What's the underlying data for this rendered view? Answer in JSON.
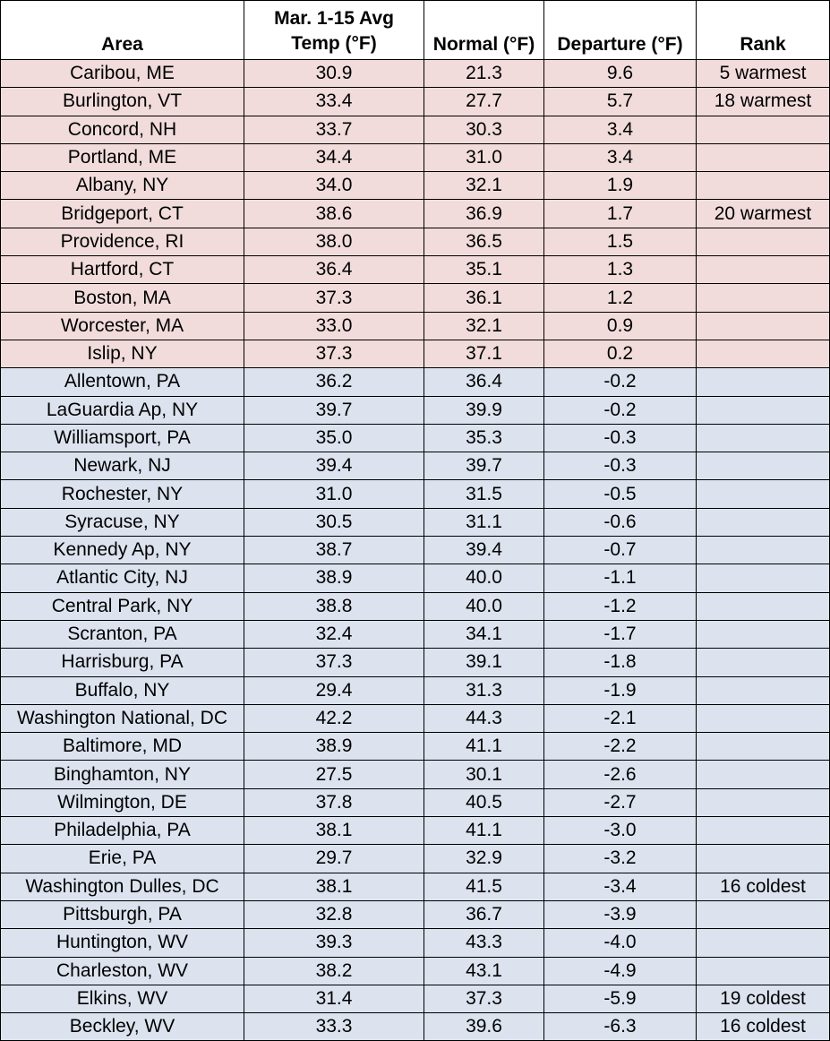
{
  "columns": {
    "area": "Area",
    "avg_line1": "Mar. 1-15 Avg",
    "avg_line2": "Temp (°F)",
    "normal": "Normal (°F)",
    "departure": "Departure (°F)",
    "rank": "Rank"
  },
  "colors": {
    "warm_row": "#f1dcdb",
    "cold_row": "#dce3ef"
  },
  "rows": [
    {
      "area": "Caribou, ME",
      "avg": "30.9",
      "normal": "21.3",
      "departure": "9.6",
      "rank": "5 warmest",
      "group": "warm"
    },
    {
      "area": "Burlington, VT",
      "avg": "33.4",
      "normal": "27.7",
      "departure": "5.7",
      "rank": "18 warmest",
      "group": "warm"
    },
    {
      "area": "Concord, NH",
      "avg": "33.7",
      "normal": "30.3",
      "departure": "3.4",
      "rank": "",
      "group": "warm"
    },
    {
      "area": "Portland, ME",
      "avg": "34.4",
      "normal": "31.0",
      "departure": "3.4",
      "rank": "",
      "group": "warm"
    },
    {
      "area": "Albany, NY",
      "avg": "34.0",
      "normal": "32.1",
      "departure": "1.9",
      "rank": "",
      "group": "warm"
    },
    {
      "area": "Bridgeport, CT",
      "avg": "38.6",
      "normal": "36.9",
      "departure": "1.7",
      "rank": "20 warmest",
      "group": "warm"
    },
    {
      "area": "Providence, RI",
      "avg": "38.0",
      "normal": "36.5",
      "departure": "1.5",
      "rank": "",
      "group": "warm"
    },
    {
      "area": "Hartford, CT",
      "avg": "36.4",
      "normal": "35.1",
      "departure": "1.3",
      "rank": "",
      "group": "warm"
    },
    {
      "area": "Boston, MA",
      "avg": "37.3",
      "normal": "36.1",
      "departure": "1.2",
      "rank": "",
      "group": "warm"
    },
    {
      "area": "Worcester, MA",
      "avg": "33.0",
      "normal": "32.1",
      "departure": "0.9",
      "rank": "",
      "group": "warm"
    },
    {
      "area": "Islip, NY",
      "avg": "37.3",
      "normal": "37.1",
      "departure": "0.2",
      "rank": "",
      "group": "warm"
    },
    {
      "area": "Allentown, PA",
      "avg": "36.2",
      "normal": "36.4",
      "departure": "-0.2",
      "rank": "",
      "group": "cold"
    },
    {
      "area": "LaGuardia Ap, NY",
      "avg": "39.7",
      "normal": "39.9",
      "departure": "-0.2",
      "rank": "",
      "group": "cold"
    },
    {
      "area": "Williamsport, PA",
      "avg": "35.0",
      "normal": "35.3",
      "departure": "-0.3",
      "rank": "",
      "group": "cold"
    },
    {
      "area": "Newark, NJ",
      "avg": "39.4",
      "normal": "39.7",
      "departure": "-0.3",
      "rank": "",
      "group": "cold"
    },
    {
      "area": "Rochester, NY",
      "avg": "31.0",
      "normal": "31.5",
      "departure": "-0.5",
      "rank": "",
      "group": "cold"
    },
    {
      "area": "Syracuse, NY",
      "avg": "30.5",
      "normal": "31.1",
      "departure": "-0.6",
      "rank": "",
      "group": "cold"
    },
    {
      "area": "Kennedy Ap, NY",
      "avg": "38.7",
      "normal": "39.4",
      "departure": "-0.7",
      "rank": "",
      "group": "cold"
    },
    {
      "area": "Atlantic City, NJ",
      "avg": "38.9",
      "normal": "40.0",
      "departure": "-1.1",
      "rank": "",
      "group": "cold"
    },
    {
      "area": "Central Park, NY",
      "avg": "38.8",
      "normal": "40.0",
      "departure": "-1.2",
      "rank": "",
      "group": "cold"
    },
    {
      "area": "Scranton, PA",
      "avg": "32.4",
      "normal": "34.1",
      "departure": "-1.7",
      "rank": "",
      "group": "cold"
    },
    {
      "area": "Harrisburg, PA",
      "avg": "37.3",
      "normal": "39.1",
      "departure": "-1.8",
      "rank": "",
      "group": "cold"
    },
    {
      "area": "Buffalo, NY",
      "avg": "29.4",
      "normal": "31.3",
      "departure": "-1.9",
      "rank": "",
      "group": "cold"
    },
    {
      "area": "Washington National, DC",
      "avg": "42.2",
      "normal": "44.3",
      "departure": "-2.1",
      "rank": "",
      "group": "cold"
    },
    {
      "area": "Baltimore, MD",
      "avg": "38.9",
      "normal": "41.1",
      "departure": "-2.2",
      "rank": "",
      "group": "cold"
    },
    {
      "area": "Binghamton, NY",
      "avg": "27.5",
      "normal": "30.1",
      "departure": "-2.6",
      "rank": "",
      "group": "cold"
    },
    {
      "area": "Wilmington, DE",
      "avg": "37.8",
      "normal": "40.5",
      "departure": "-2.7",
      "rank": "",
      "group": "cold"
    },
    {
      "area": "Philadelphia, PA",
      "avg": "38.1",
      "normal": "41.1",
      "departure": "-3.0",
      "rank": "",
      "group": "cold"
    },
    {
      "area": "Erie, PA",
      "avg": "29.7",
      "normal": "32.9",
      "departure": "-3.2",
      "rank": "",
      "group": "cold"
    },
    {
      "area": "Washington Dulles, DC",
      "avg": "38.1",
      "normal": "41.5",
      "departure": "-3.4",
      "rank": "16 coldest",
      "group": "cold"
    },
    {
      "area": "Pittsburgh, PA",
      "avg": "32.8",
      "normal": "36.7",
      "departure": "-3.9",
      "rank": "",
      "group": "cold"
    },
    {
      "area": "Huntington, WV",
      "avg": "39.3",
      "normal": "43.3",
      "departure": "-4.0",
      "rank": "",
      "group": "cold"
    },
    {
      "area": "Charleston, WV",
      "avg": "38.2",
      "normal": "43.1",
      "departure": "-4.9",
      "rank": "",
      "group": "cold"
    },
    {
      "area": "Elkins, WV",
      "avg": "31.4",
      "normal": "37.3",
      "departure": "-5.9",
      "rank": "19 coldest",
      "group": "cold"
    },
    {
      "area": "Beckley, WV",
      "avg": "33.3",
      "normal": "39.6",
      "departure": "-6.3",
      "rank": "16 coldest",
      "group": "cold"
    }
  ]
}
